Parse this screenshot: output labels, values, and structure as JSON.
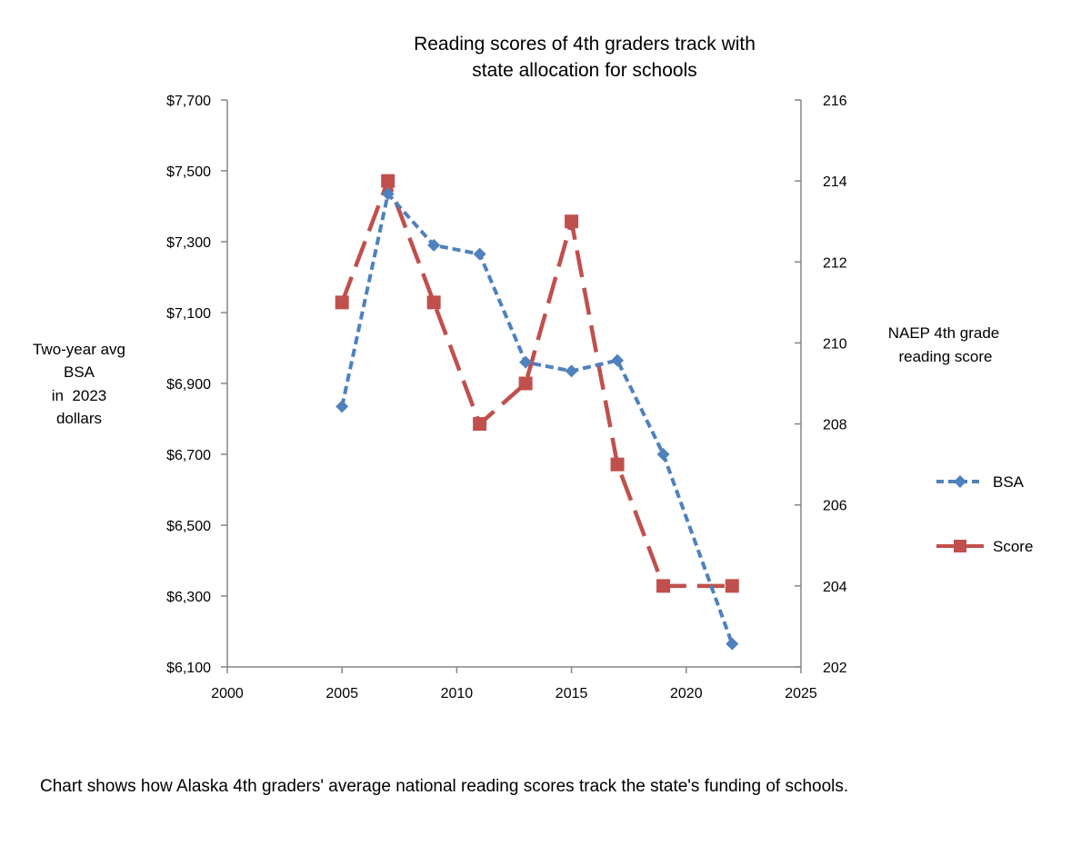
{
  "chart_data": {
    "type": "line",
    "title": [
      "Reading scores of 4th graders track with",
      "state allocation for schools"
    ],
    "xlim": [
      2000,
      2025
    ],
    "xticks": [
      2000,
      2005,
      2010,
      2015,
      2020,
      2025
    ],
    "xtick_labels": [
      "2000",
      "2005",
      "2010",
      "2015",
      "2020",
      "2025"
    ],
    "left_axis": {
      "label": [
        "Two-year avg",
        "BSA",
        "in  2023",
        "dollars"
      ],
      "ylim": [
        6100,
        7700
      ],
      "ticks": [
        6100,
        6300,
        6500,
        6700,
        6900,
        7100,
        7300,
        7500,
        7700
      ],
      "tick_labels": [
        "$6,100",
        "$6,300",
        "$6,500",
        "$6,700",
        "$6,900",
        "$7,100",
        "$7,300",
        "$7,500",
        "$7,700"
      ]
    },
    "right_axis": {
      "label": [
        "NAEP 4th grade",
        "reading score"
      ],
      "ylim": [
        202,
        216
      ],
      "ticks": [
        202,
        204,
        206,
        208,
        210,
        212,
        214,
        216
      ],
      "tick_labels": [
        "202",
        "204",
        "206",
        "208",
        "210",
        "212",
        "214",
        "216"
      ]
    },
    "series": [
      {
        "name": "BSA",
        "axis": "left",
        "color": "#4F81BD",
        "marker": "diamond",
        "dash": "short",
        "x": [
          2005,
          2007,
          2009,
          2011,
          2013,
          2015,
          2017,
          2019,
          2022
        ],
        "values": [
          6835,
          7435,
          7290,
          7265,
          6960,
          6935,
          6965,
          6700,
          6165
        ]
      },
      {
        "name": "Score",
        "axis": "right",
        "color": "#C0504D",
        "marker": "square",
        "dash": "long",
        "x": [
          2005,
          2007,
          2009,
          2011,
          2013,
          2015,
          2017,
          2019,
          2022
        ],
        "values": [
          211,
          214,
          211,
          208,
          209,
          213,
          207,
          204,
          204
        ]
      }
    ],
    "legend_position": "right"
  },
  "caption": "Chart shows how Alaska 4th graders' average national reading scores track the state's funding of schools."
}
